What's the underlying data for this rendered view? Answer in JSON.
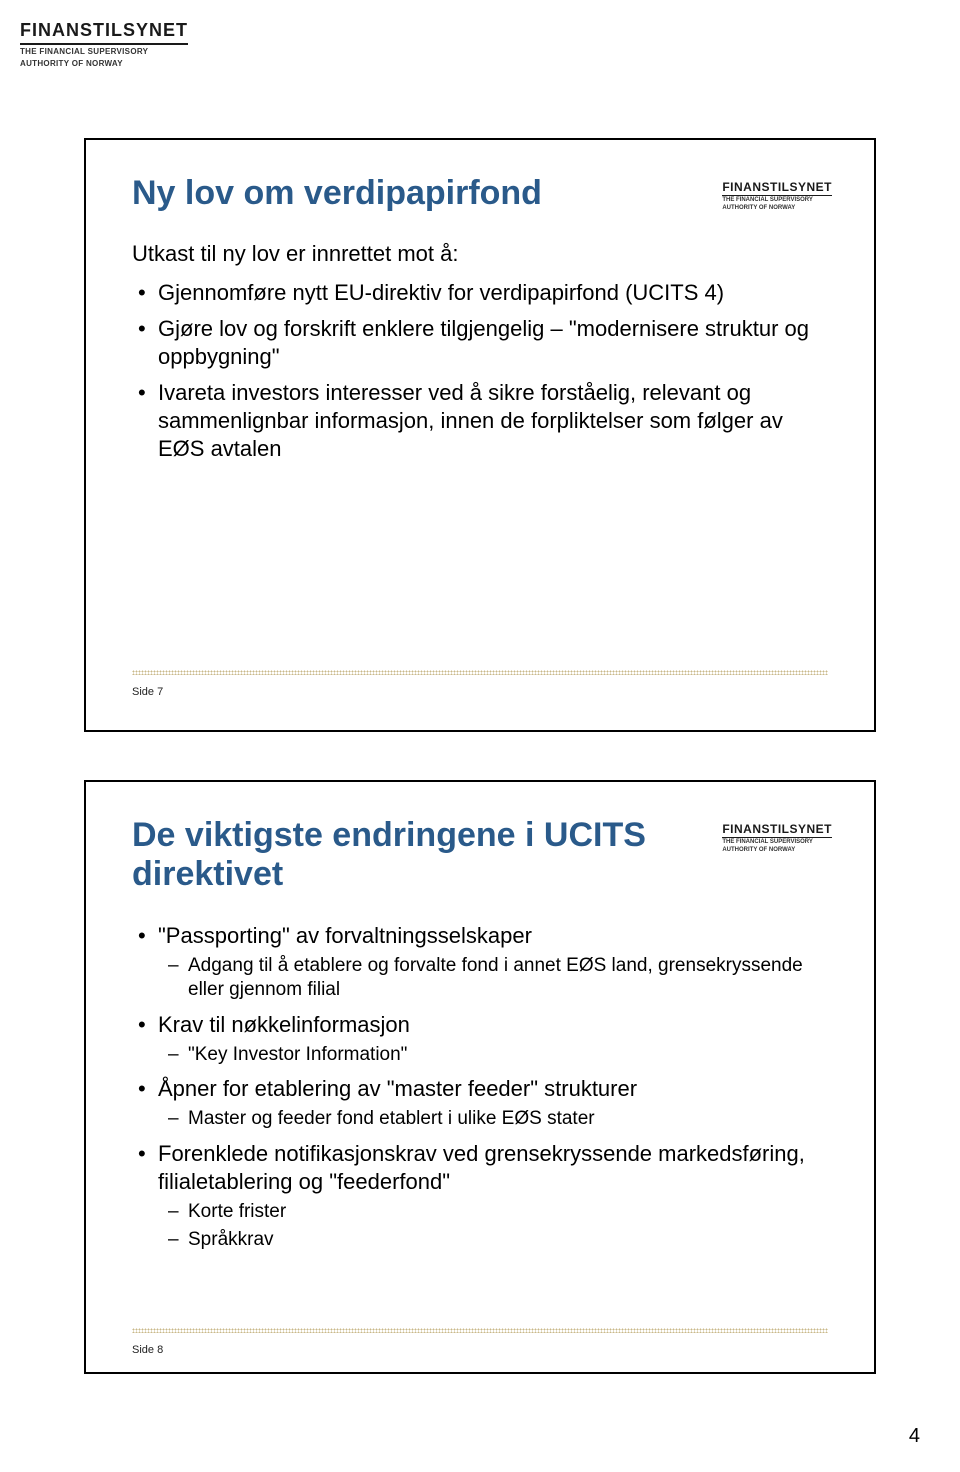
{
  "brand": {
    "name": "FINANSTILSYNET",
    "tagline_line1": "THE FINANCIAL SUPERVISORY",
    "tagline_line2": "AUTHORITY OF NORWAY"
  },
  "colors": {
    "title": "#2a5a8a",
    "text": "#000000",
    "dotline": "#c9b88a",
    "background": "#ffffff"
  },
  "page_number": "4",
  "slide1": {
    "title": "Ny lov om verdipapirfond",
    "lead": "Utkast til ny lov er innrettet mot å:",
    "side_label": "Side 7",
    "bullets": {
      "b0": "Gjennomføre nytt EU-direktiv for verdipapirfond (UCITS 4)",
      "b1": "Gjøre lov og forskrift enklere tilgjengelig – \"modernisere struktur og oppbygning\"",
      "b2": "Ivareta investors interesser ved å sikre forståelig, relevant og sammenlignbar informasjon, innen de forpliktelser som følger av EØS avtalen"
    }
  },
  "slide2": {
    "title": "De viktigste endringene i UCITS direktivet",
    "side_label": "Side 8",
    "bullets": {
      "b0": {
        "text": "\"Passporting\" av forvaltningsselskaper",
        "sub0": "Adgang til å etablere og forvalte fond i annet EØS land, grensekryssende eller gjennom filial"
      },
      "b1": {
        "text": "Krav til nøkkelinformasjon",
        "sub0": "\"Key Investor Information\""
      },
      "b2": {
        "text": "Åpner for etablering av \"master feeder\" strukturer",
        "sub0": "Master og feeder fond etablert i ulike EØS stater"
      },
      "b3": {
        "text": "Forenklede notifikasjonskrav ved grensekryssende markedsføring, filialetablering og \"feederfond\"",
        "sub0": "Korte frister",
        "sub1": "Språkkrav"
      }
    }
  }
}
